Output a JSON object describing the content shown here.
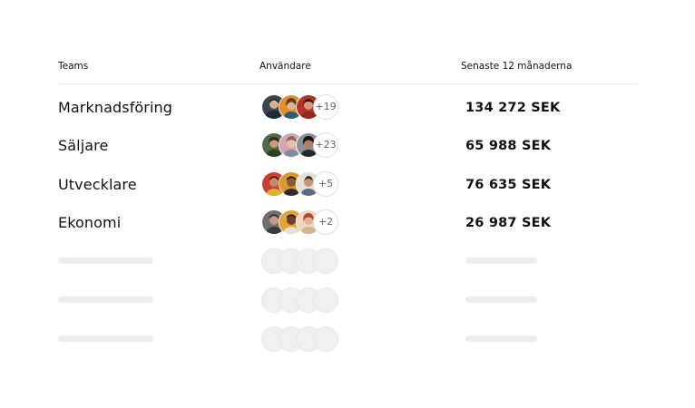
{
  "table": {
    "headers": {
      "teams": "Teams",
      "users": "Användare",
      "last12": "Senaste 12 månaderna"
    },
    "rows": [
      {
        "name": "Marknadsföring",
        "more": "+19",
        "total": "134 272 SEK"
      },
      {
        "name": "Säljare",
        "more": "+23",
        "total": "65 988 SEK"
      },
      {
        "name": "Utvecklare",
        "more": "+5",
        "total": "76 635 SEK"
      },
      {
        "name": "Ekonomi",
        "more": "+2",
        "total": "26 987 SEK"
      }
    ],
    "placeholder_rows": 3
  },
  "colors": {
    "header_border": "#e6e6e6",
    "skeleton": "#eeeeee",
    "avatar_1": "#2f3b45",
    "avatar_2": "#e08a2a",
    "avatar_3": "#c0392b"
  }
}
